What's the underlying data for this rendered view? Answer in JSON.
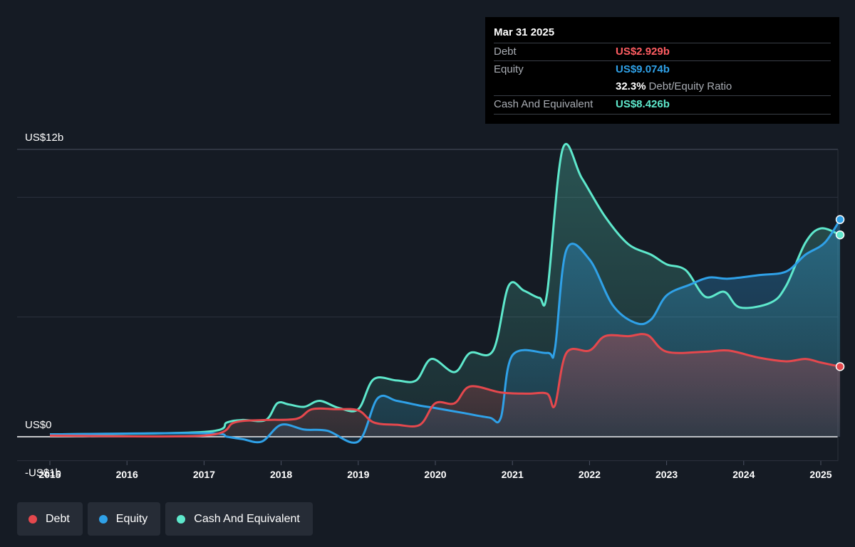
{
  "chart_data": {
    "type": "area",
    "y_axis_labels": [
      "US$12b",
      "US$0",
      "-US$1b"
    ],
    "ylim": [
      -1,
      12
    ],
    "x_tick_labels": [
      "2015",
      "2016",
      "2017",
      "2018",
      "2019",
      "2020",
      "2021",
      "2022",
      "2023",
      "2024",
      "2025"
    ],
    "grid": true,
    "legend_position": "bottom-left",
    "series": [
      {
        "name": "Debt",
        "color": "#e5484d",
        "values": [
          [
            2015.0,
            0.05
          ],
          [
            2017.0,
            0.05
          ],
          [
            2017.4,
            0.6
          ],
          [
            2017.8,
            0.7
          ],
          [
            2018.2,
            0.75
          ],
          [
            2018.4,
            1.15
          ],
          [
            2018.7,
            1.15
          ],
          [
            2019.0,
            1.1
          ],
          [
            2019.2,
            0.6
          ],
          [
            2019.5,
            0.5
          ],
          [
            2019.8,
            0.5
          ],
          [
            2020.0,
            1.4
          ],
          [
            2020.25,
            1.4
          ],
          [
            2020.45,
            2.1
          ],
          [
            2020.85,
            1.85
          ],
          [
            2021.2,
            1.8
          ],
          [
            2021.45,
            1.8
          ],
          [
            2021.55,
            1.3
          ],
          [
            2021.7,
            3.5
          ],
          [
            2022.0,
            3.6
          ],
          [
            2022.2,
            4.2
          ],
          [
            2022.5,
            4.2
          ],
          [
            2022.75,
            4.25
          ],
          [
            2023.0,
            3.55
          ],
          [
            2023.5,
            3.55
          ],
          [
            2023.8,
            3.6
          ],
          [
            2024.2,
            3.3
          ],
          [
            2024.55,
            3.15
          ],
          [
            2024.8,
            3.25
          ],
          [
            2025.0,
            3.1
          ],
          [
            2025.25,
            2.93
          ]
        ]
      },
      {
        "name": "Equity",
        "color": "#2fa1e8",
        "values": [
          [
            2015.0,
            0.1
          ],
          [
            2017.0,
            0.15
          ],
          [
            2017.3,
            0.0
          ],
          [
            2017.5,
            -0.1
          ],
          [
            2017.75,
            -0.2
          ],
          [
            2018.0,
            0.5
          ],
          [
            2018.3,
            0.3
          ],
          [
            2018.6,
            0.25
          ],
          [
            2019.0,
            -0.2
          ],
          [
            2019.25,
            1.6
          ],
          [
            2019.5,
            1.5
          ],
          [
            2019.8,
            1.3
          ],
          [
            2020.0,
            1.2
          ],
          [
            2020.35,
            1.0
          ],
          [
            2020.7,
            0.8
          ],
          [
            2020.85,
            0.8
          ],
          [
            2021.0,
            3.4
          ],
          [
            2021.45,
            3.5
          ],
          [
            2021.55,
            3.65
          ],
          [
            2021.7,
            7.8
          ],
          [
            2022.0,
            7.4
          ],
          [
            2022.3,
            5.5
          ],
          [
            2022.6,
            4.75
          ],
          [
            2022.8,
            4.9
          ],
          [
            2023.0,
            5.9
          ],
          [
            2023.3,
            6.35
          ],
          [
            2023.55,
            6.65
          ],
          [
            2023.8,
            6.6
          ],
          [
            2024.2,
            6.75
          ],
          [
            2024.55,
            6.9
          ],
          [
            2024.8,
            7.6
          ],
          [
            2025.05,
            8.1
          ],
          [
            2025.25,
            9.07
          ]
        ]
      },
      {
        "name": "Cash And Equivalent",
        "color": "#5ee8cc",
        "values": [
          [
            2015.0,
            0.1
          ],
          [
            2017.0,
            0.2
          ],
          [
            2017.3,
            0.6
          ],
          [
            2017.5,
            0.7
          ],
          [
            2017.8,
            0.7
          ],
          [
            2017.95,
            1.4
          ],
          [
            2018.1,
            1.35
          ],
          [
            2018.3,
            1.25
          ],
          [
            2018.5,
            1.5
          ],
          [
            2018.75,
            1.2
          ],
          [
            2019.0,
            1.15
          ],
          [
            2019.2,
            2.4
          ],
          [
            2019.5,
            2.35
          ],
          [
            2019.75,
            2.35
          ],
          [
            2019.95,
            3.25
          ],
          [
            2020.25,
            2.7
          ],
          [
            2020.45,
            3.5
          ],
          [
            2020.75,
            3.6
          ],
          [
            2020.95,
            6.3
          ],
          [
            2021.15,
            6.1
          ],
          [
            2021.35,
            5.8
          ],
          [
            2021.45,
            6.0
          ],
          [
            2021.65,
            12.0
          ],
          [
            2021.9,
            10.8
          ],
          [
            2022.2,
            9.2
          ],
          [
            2022.5,
            8.05
          ],
          [
            2022.8,
            7.6
          ],
          [
            2023.0,
            7.2
          ],
          [
            2023.25,
            6.95
          ],
          [
            2023.5,
            5.85
          ],
          [
            2023.75,
            6.05
          ],
          [
            2023.95,
            5.4
          ],
          [
            2024.35,
            5.6
          ],
          [
            2024.55,
            6.3
          ],
          [
            2024.8,
            8.1
          ],
          [
            2025.0,
            8.7
          ],
          [
            2025.25,
            8.43
          ]
        ]
      }
    ]
  },
  "tooltip": {
    "date": "Mar 31 2025",
    "debt_label": "Debt",
    "debt_value": "US$2.929b",
    "equity_label": "Equity",
    "equity_value": "US$9.074b",
    "ratio_value": "32.3%",
    "ratio_label": "Debt/Equity Ratio",
    "cash_label": "Cash And Equivalent",
    "cash_value": "US$8.426b"
  },
  "legend": [
    {
      "label": "Debt",
      "color": "#e5484d"
    },
    {
      "label": "Equity",
      "color": "#2fa1e8"
    },
    {
      "label": "Cash And Equivalent",
      "color": "#5ee8cc"
    }
  ]
}
